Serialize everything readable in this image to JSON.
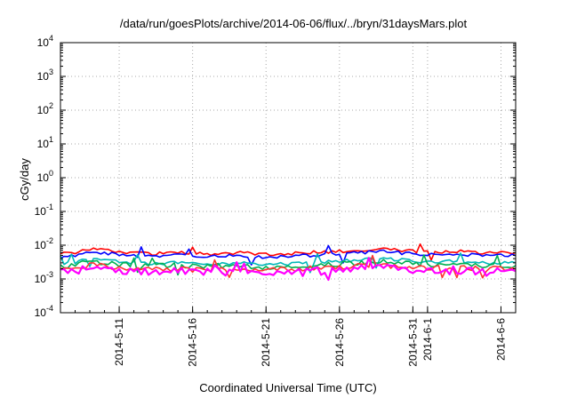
{
  "chart_data": {
    "type": "line",
    "title": "/data/run/goesPlots/archive/2014-06-06/flux/../bryn/31daysMars.plot",
    "xlabel": "Coordinated Universal Time (UTC)",
    "ylabel": "cGy/day",
    "y_scale": "log",
    "ylim": [
      0.0001,
      10000
    ],
    "y_ticks": [
      {
        "base": "10",
        "exp": "4"
      },
      {
        "base": "10",
        "exp": "3"
      },
      {
        "base": "10",
        "exp": "2"
      },
      {
        "base": "10",
        "exp": "1"
      },
      {
        "base": "10",
        "exp": "0"
      },
      {
        "base": "10",
        "exp": "-1"
      },
      {
        "base": "10",
        "exp": "-2"
      },
      {
        "base": "10",
        "exp": "-3"
      },
      {
        "base": "10",
        "exp": "-4"
      }
    ],
    "xlim": [
      "2014-05-07",
      "2014-06-07"
    ],
    "x_ticks": [
      "2014-5-11",
      "2014-5-16",
      "2014-5-21",
      "2014-5-26",
      "2014-5-31",
      "2014-6-1",
      "2014-6-6"
    ],
    "grid": true,
    "legend": "none",
    "x": [
      "2014-05-07",
      "2014-05-08",
      "2014-05-09",
      "2014-05-10",
      "2014-05-11",
      "2014-05-12",
      "2014-05-13",
      "2014-05-14",
      "2014-05-15",
      "2014-05-16",
      "2014-05-17",
      "2014-05-18",
      "2014-05-19",
      "2014-05-20",
      "2014-05-21",
      "2014-05-22",
      "2014-05-23",
      "2014-05-24",
      "2014-05-25",
      "2014-05-26",
      "2014-05-27",
      "2014-05-28",
      "2014-05-29",
      "2014-05-30",
      "2014-05-31",
      "2014-06-01",
      "2014-06-02",
      "2014-06-03",
      "2014-06-04",
      "2014-06-05",
      "2014-06-06",
      "2014-06-07"
    ],
    "series": [
      {
        "color": "#ff0000",
        "values": [
          0.0055,
          0.0062,
          0.0078,
          0.0072,
          0.0066,
          0.006,
          0.0056,
          0.0058,
          0.0061,
          0.0057,
          0.0055,
          0.0058,
          0.006,
          0.0057,
          0.0054,
          0.0056,
          0.0058,
          0.0061,
          0.0063,
          0.0066,
          0.0072,
          0.0076,
          0.0079,
          0.0073,
          0.0067,
          0.0063,
          0.0065,
          0.0068,
          0.0064,
          0.006,
          0.0062,
          0.006
        ]
      },
      {
        "color": "#0000ff",
        "values": [
          0.0045,
          0.0051,
          0.0064,
          0.0059,
          0.0054,
          0.0049,
          0.0046,
          0.0048,
          0.005,
          0.0047,
          0.0045,
          0.0048,
          0.0049,
          0.0047,
          0.0044,
          0.0046,
          0.0048,
          0.005,
          0.0052,
          0.0054,
          0.0059,
          0.0062,
          0.0065,
          0.006,
          0.0055,
          0.0052,
          0.0053,
          0.0056,
          0.0052,
          0.0049,
          0.0051,
          0.0049
        ]
      },
      {
        "color": "#00b8b8",
        "values": [
          0.0028,
          0.0031,
          0.0039,
          0.0036,
          0.0033,
          0.003,
          0.0028,
          0.0029,
          0.0031,
          0.0029,
          0.0028,
          0.0029,
          0.003,
          0.0029,
          0.0027,
          0.0028,
          0.0029,
          0.0031,
          0.0032,
          0.0033,
          0.0036,
          0.0038,
          0.004,
          0.0037,
          0.0034,
          0.0032,
          0.0033,
          0.0034,
          0.0032,
          0.003,
          0.0031,
          0.003
        ]
      },
      {
        "color": "#00b050",
        "values": [
          0.0024,
          0.0026,
          0.0033,
          0.003,
          0.0028,
          0.0025,
          0.0024,
          0.0025,
          0.0026,
          0.0024,
          0.0023,
          0.0025,
          0.0025,
          0.0024,
          0.0023,
          0.0024,
          0.0025,
          0.0026,
          0.0027,
          0.0028,
          0.003,
          0.0032,
          0.0034,
          0.0031,
          0.0029,
          0.0027,
          0.0028,
          0.0029,
          0.0027,
          0.0025,
          0.0026,
          0.0025
        ]
      },
      {
        "color": "#ff3333",
        "values": [
          0.0019,
          0.0021,
          0.0026,
          0.0024,
          0.0022,
          0.002,
          0.0019,
          0.002,
          0.0021,
          0.0019,
          0.0019,
          0.002,
          0.002,
          0.0019,
          0.0018,
          0.0019,
          0.002,
          0.0021,
          0.0021,
          0.0022,
          0.0024,
          0.0025,
          0.0026,
          0.0024,
          0.0023,
          0.0021,
          0.0022,
          0.0023,
          0.0021,
          0.002,
          0.0021,
          0.002
        ]
      },
      {
        "color": "#ff00ff",
        "values": [
          0.0016,
          0.0018,
          0.0022,
          0.002,
          0.0018,
          0.0017,
          0.0016,
          0.0017,
          0.0017,
          0.0016,
          0.0016,
          0.0016,
          0.0017,
          0.0016,
          0.0015,
          0.0016,
          0.0016,
          0.0017,
          0.0018,
          0.0018,
          0.002,
          0.0021,
          0.0022,
          0.002,
          0.0019,
          0.0018,
          0.0018,
          0.0019,
          0.0018,
          0.0017,
          0.0017,
          0.0017
        ]
      }
    ]
  }
}
